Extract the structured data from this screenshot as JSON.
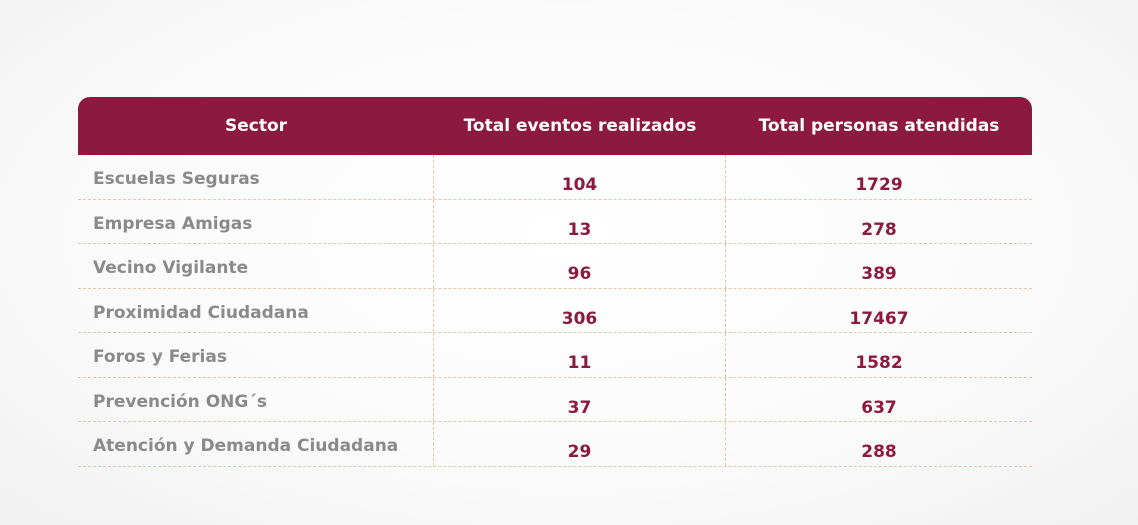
{
  "table": {
    "headers": [
      "Sector",
      "Total eventos realizados",
      "Total personas atendidas"
    ],
    "rows": [
      {
        "sector": "Escuelas Seguras",
        "eventos": "104",
        "personas": "1729"
      },
      {
        "sector": "Empresa Amigas",
        "eventos": "13",
        "personas": "278"
      },
      {
        "sector": "Vecino Vigilante",
        "eventos": "96",
        "personas": "389"
      },
      {
        "sector": "Proximidad Ciudadana",
        "eventos": "306",
        "personas": "17467"
      },
      {
        "sector": "Foros y Ferias",
        "eventos": "11",
        "personas": "1582"
      },
      {
        "sector": "Prevención ONG´s",
        "eventos": "37",
        "personas": "637"
      },
      {
        "sector": "Atención y Demanda Ciudadana",
        "eventos": "29",
        "personas": "288"
      }
    ]
  },
  "colors": {
    "header_bg": "#8c1a40",
    "value_text": "#8c1a40",
    "sector_text": "#8a8a8a",
    "divider": "#e3c6a6"
  }
}
